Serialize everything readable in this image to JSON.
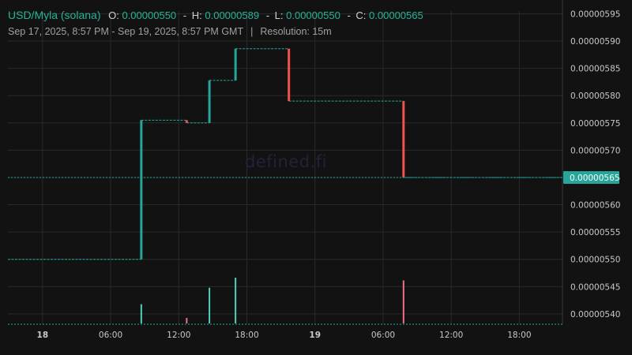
{
  "header": {
    "symbol": "USD/Myla (solana)",
    "open_label": "O:",
    "open": "0.00000550",
    "high_label": "H:",
    "high": "0.00000589",
    "low_label": "L:",
    "low": "0.00000550",
    "close_label": "C:",
    "close": "0.00000565",
    "dash": "-",
    "date_range": "Sep 17, 2025, 8:57 PM - Sep 19, 2025, 8:57 PM GMT",
    "divider": "|",
    "resolution": "Resolution: 15m"
  },
  "watermark": "defined.fi",
  "colors": {
    "background": "#121212",
    "grid": "#2a2a2a",
    "up": "#26a69a",
    "down": "#ef5350",
    "price_tag": "#26a69a"
  },
  "chart_data": {
    "type": "candlestick",
    "x_unit": "hours since Sep 18 00:00 GMT",
    "xlim": [
      -3.05,
      45.8
    ],
    "ylim": [
      5.381e-06,
      5.955e-06
    ],
    "y_ticks": [
      "0.00000540",
      "0.00000545",
      "0.00000550",
      "0.00000555",
      "0.00000560",
      "0.00000565",
      "0.00000570",
      "0.00000575",
      "0.00000580",
      "0.00000585",
      "0.00000590",
      "0.00000595"
    ],
    "y_tick_values": [
      5.4e-06,
      5.45e-06,
      5.5e-06,
      5.55e-06,
      5.6e-06,
      5.65e-06,
      5.7e-06,
      5.75e-06,
      5.8e-06,
      5.85e-06,
      5.9e-06,
      5.95e-06
    ],
    "x_ticks": [
      {
        "label": "18",
        "x": 0,
        "bold": true
      },
      {
        "label": "06:00",
        "x": 6,
        "bold": false
      },
      {
        "label": "12:00",
        "x": 12,
        "bold": false
      },
      {
        "label": "18:00",
        "x": 18,
        "bold": false
      },
      {
        "label": "19",
        "x": 24,
        "bold": true
      },
      {
        "label": "06:00",
        "x": 30,
        "bold": false
      },
      {
        "label": "12:00",
        "x": 36,
        "bold": false
      },
      {
        "label": "18:00",
        "x": 42,
        "bold": false
      }
    ],
    "candles": [
      {
        "x": 8.7,
        "open": 5.5e-06,
        "close": 5.755e-06,
        "dir": "up"
      },
      {
        "x": 12.7,
        "open": 5.755e-06,
        "close": 5.75e-06,
        "dir": "down"
      },
      {
        "x": 14.7,
        "open": 5.75e-06,
        "close": 5.828e-06,
        "dir": "up"
      },
      {
        "x": 17.0,
        "open": 5.828e-06,
        "close": 5.886e-06,
        "dir": "up"
      },
      {
        "x": 21.7,
        "open": 5.886e-06,
        "close": 5.79e-06,
        "dir": "down"
      },
      {
        "x": 31.8,
        "open": 5.79e-06,
        "close": 5.65e-06,
        "dir": "down"
      }
    ],
    "levels": [
      {
        "x0": -3.05,
        "x1": 8.7,
        "y": 5.5e-06
      },
      {
        "x0": 8.7,
        "x1": 12.7,
        "y": 5.755e-06
      },
      {
        "x0": 12.7,
        "x1": 14.7,
        "y": 5.75e-06
      },
      {
        "x0": 14.7,
        "x1": 17.0,
        "y": 5.828e-06
      },
      {
        "x0": 17.0,
        "x1": 21.7,
        "y": 5.886e-06
      },
      {
        "x0": 21.7,
        "x1": 31.8,
        "y": 5.79e-06
      },
      {
        "x0": 31.8,
        "x1": 45.8,
        "y": 5.65e-06
      }
    ],
    "volume": [
      {
        "x": 8.7,
        "level": 0.42,
        "dir": "up"
      },
      {
        "x": 12.7,
        "level": 0.12,
        "dir": "down"
      },
      {
        "x": 14.7,
        "level": 0.78,
        "dir": "up"
      },
      {
        "x": 17.0,
        "level": 1.0,
        "dir": "up"
      },
      {
        "x": 31.8,
        "level": 0.94,
        "dir": "down"
      }
    ],
    "current_price": {
      "value": 5.65e-06,
      "label": "0.00000565"
    }
  }
}
